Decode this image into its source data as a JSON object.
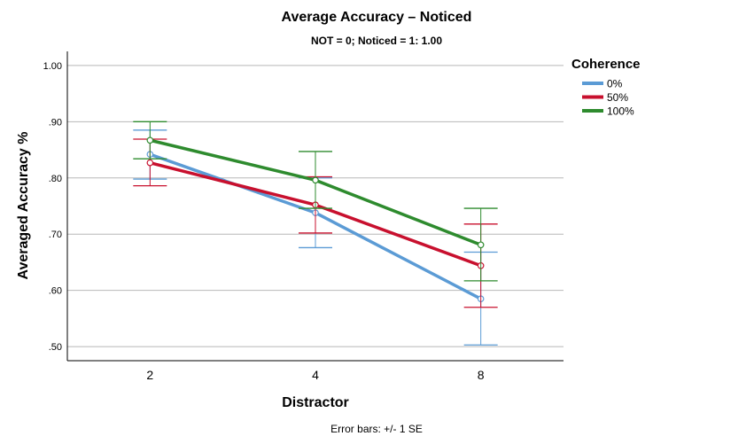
{
  "chart_data": {
    "type": "line",
    "title": "Average Accuracy – Noticed",
    "subtitle": "NOT = 0; Noticed = 1: 1.00",
    "xlabel": "Distractor",
    "ylabel": "Averaged Accuracy %",
    "categories": [
      "2",
      "4",
      "8"
    ],
    "ylim": [
      0.475,
      1.025
    ],
    "yticks": [
      0.5,
      0.6,
      0.7,
      0.8,
      0.9,
      1.0
    ],
    "ytick_labels": [
      ".50",
      ".60",
      ".70",
      ".80",
      ".90",
      "1.00"
    ],
    "grid": "horizontal",
    "legend": {
      "title": "Coherence",
      "position": "right"
    },
    "series": [
      {
        "name": "0%",
        "color": "#5b9bd5",
        "values": [
          0.842,
          0.738,
          0.585
        ],
        "err_low": [
          0.798,
          0.676,
          0.503
        ],
        "err_high": [
          0.885,
          0.8,
          0.668
        ]
      },
      {
        "name": "50%",
        "color": "#c8102e",
        "values": [
          0.827,
          0.752,
          0.644
        ],
        "err_low": [
          0.786,
          0.702,
          0.57
        ],
        "err_high": [
          0.869,
          0.802,
          0.718
        ]
      },
      {
        "name": "100%",
        "color": "#2e8b2e",
        "values": [
          0.867,
          0.796,
          0.681
        ],
        "err_low": [
          0.834,
          0.746,
          0.617
        ],
        "err_high": [
          0.9,
          0.847,
          0.746
        ]
      }
    ],
    "footnote": "Error bars: +/- 1 SE"
  }
}
